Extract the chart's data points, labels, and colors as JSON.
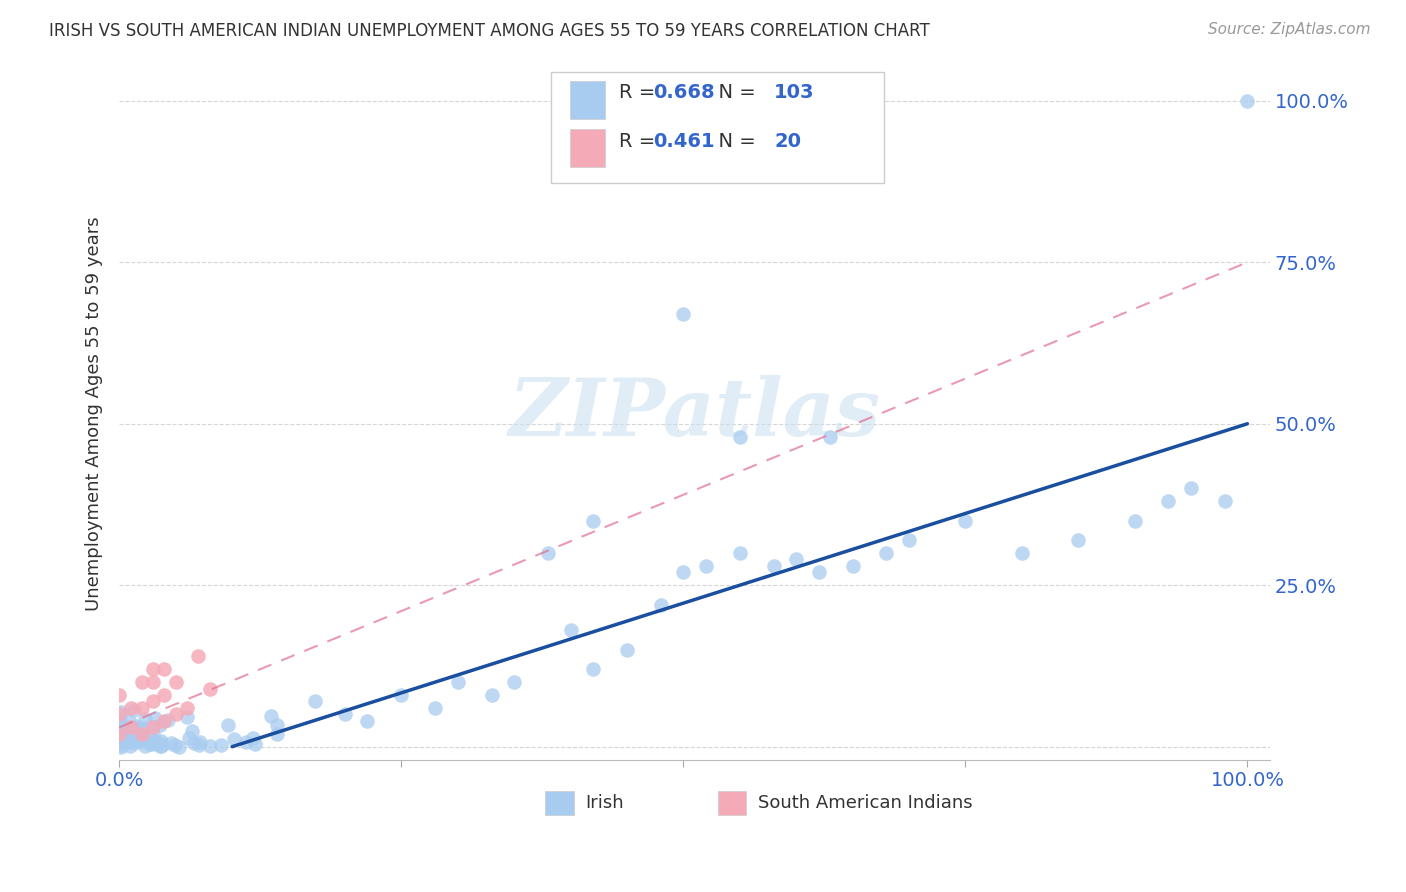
{
  "title": "IRISH VS SOUTH AMERICAN INDIAN UNEMPLOYMENT AMONG AGES 55 TO 59 YEARS CORRELATION CHART",
  "source": "Source: ZipAtlas.com",
  "ylabel": "Unemployment Among Ages 55 to 59 years",
  "legend_irish": "Irish",
  "legend_sai": "South American Indians",
  "irish_R": "0.668",
  "irish_N": "103",
  "sai_R": "0.461",
  "sai_N": "20",
  "irish_scatter_color": "#a8ccf0",
  "irish_line_color": "#1a4fa0",
  "sai_scatter_color": "#f5aab8",
  "sai_line_color": "#e07090",
  "grid_color": "#cccccc",
  "text_color": "#333333",
  "axis_label_color": "#3366cc",
  "source_color": "#999999",
  "watermark_color": "#c8dff0",
  "irish_line_x0": 0.1,
  "irish_line_y0": 0.0,
  "irish_line_x1": 1.0,
  "irish_line_y1": 0.5,
  "sai_line_x0": 0.0,
  "sai_line_y0": 0.03,
  "sai_line_x1": 1.0,
  "sai_line_y1": 0.75,
  "xlim": [
    0.0,
    1.02
  ],
  "ylim": [
    -0.02,
    1.05
  ]
}
